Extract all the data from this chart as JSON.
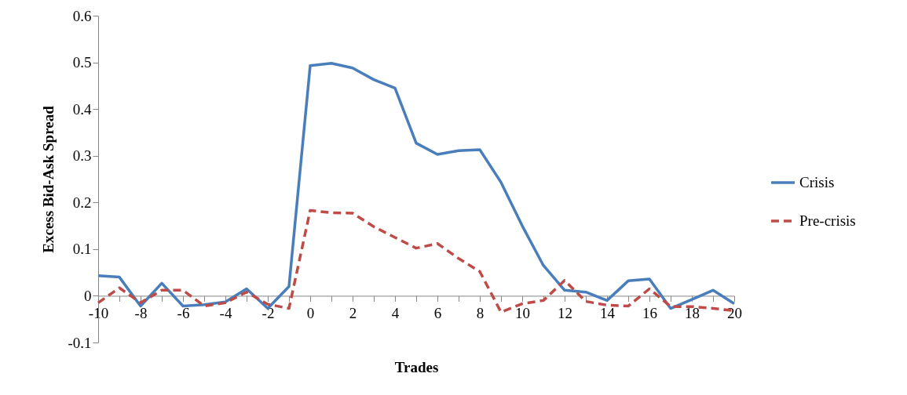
{
  "chart_data": {
    "type": "line",
    "xlabel": "Trades",
    "ylabel": "Excess Bid-Ask Spread",
    "x": [
      -10,
      -9,
      -8,
      -7,
      -6,
      -5,
      -4,
      -3,
      -2,
      -1,
      0,
      1,
      2,
      3,
      4,
      5,
      6,
      7,
      8,
      9,
      10,
      11,
      12,
      13,
      14,
      15,
      16,
      17,
      18,
      19,
      20
    ],
    "series": [
      {
        "name": "Crisis",
        "color": "#4a7ebb",
        "line_style": "solid",
        "values": [
          0.043,
          0.04,
          -0.022,
          0.027,
          -0.022,
          -0.019,
          -0.013,
          0.015,
          -0.027,
          0.02,
          0.493,
          0.498,
          0.488,
          0.463,
          0.445,
          0.327,
          0.303,
          0.311,
          0.313,
          0.243,
          0.15,
          0.065,
          0.012,
          0.008,
          -0.01,
          0.032,
          0.036,
          -0.027,
          -0.008,
          0.012,
          -0.017
        ]
      },
      {
        "name": "Pre-crisis",
        "color": "#be4b48",
        "line_style": "dashed",
        "values": [
          -0.015,
          0.017,
          -0.015,
          0.012,
          0.012,
          -0.022,
          -0.015,
          0.008,
          -0.018,
          -0.027,
          0.183,
          0.178,
          0.177,
          0.148,
          0.125,
          0.102,
          0.112,
          0.08,
          0.052,
          -0.035,
          -0.017,
          -0.01,
          0.033,
          -0.012,
          -0.02,
          -0.022,
          0.015,
          -0.023,
          -0.023,
          -0.027,
          -0.032
        ]
      }
    ],
    "xlim": [
      -10,
      20
    ],
    "xticks": [
      -10,
      {
        "value": -9,
        "label": null
      },
      -8,
      {
        "value": -7,
        "label": null
      },
      -6,
      {
        "value": -5,
        "label": null
      },
      -4,
      {
        "value": -3,
        "label": null
      },
      -2,
      {
        "value": -1,
        "label": null
      },
      0,
      {
        "value": 1,
        "label": null
      },
      2,
      {
        "value": 3,
        "label": null
      },
      4,
      {
        "value": 5,
        "label": null
      },
      6,
      {
        "value": 7,
        "label": null
      },
      8,
      {
        "value": 9,
        "label": null
      },
      10,
      {
        "value": 11,
        "label": null
      },
      12,
      {
        "value": 13,
        "label": null
      },
      14,
      {
        "value": 15,
        "label": null
      },
      16,
      {
        "value": 17,
        "label": null
      },
      18,
      {
        "value": 19,
        "label": null
      },
      20
    ],
    "ylim": [
      -0.1,
      0.6
    ],
    "yticks": [
      {
        "value": -0.1,
        "label": "-0.1"
      },
      0,
      0.1,
      0.2,
      0.3,
      0.4,
      0.5,
      0.6
    ],
    "grid": false,
    "legend": "right",
    "marker": "none"
  }
}
